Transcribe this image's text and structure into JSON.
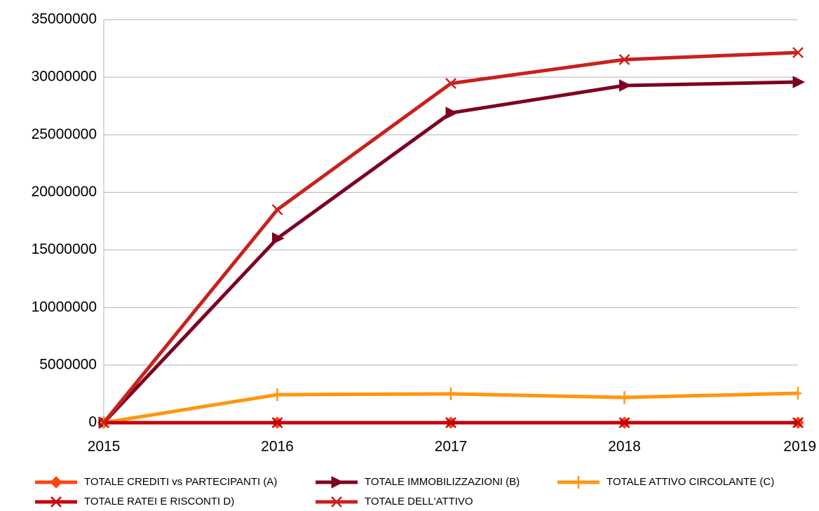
{
  "chart_data": {
    "type": "line",
    "categories": [
      "2015",
      "2016",
      "2017",
      "2018",
      "2019"
    ],
    "series": [
      {
        "name": "TOTALE CREDITI vs PARTECIPANTI (A)",
        "color": "#ff420e",
        "marker": "diamond",
        "values": [
          0,
          0,
          0,
          0,
          0
        ]
      },
      {
        "name": "TOTALE IMMOBILIZZAZIONI (B)",
        "color": "#7e0021",
        "marker": "triangle",
        "values": [
          0,
          16000000,
          26900000,
          29280000,
          29580000
        ]
      },
      {
        "name": "TOTALE ATTIVO CIRCOLANTE (C)",
        "color": "#ff950e",
        "marker": "cross",
        "values": [
          0,
          2430000,
          2500000,
          2190000,
          2560000
        ]
      },
      {
        "name": "TOTALE RATEI E RISCONTI D)",
        "color": "#c5000b",
        "marker": "x",
        "values": [
          0,
          0,
          0,
          0,
          0
        ]
      },
      {
        "name": "TOTALE DELL'ATTIVO",
        "color": "#c9211e",
        "marker": "x",
        "values": [
          0,
          18500000,
          29460000,
          31530000,
          32140000
        ]
      }
    ],
    "ylim": [
      0,
      35000000
    ],
    "yticks": [
      0,
      5000000,
      10000000,
      15000000,
      20000000,
      25000000,
      30000000,
      35000000
    ],
    "grid": true
  }
}
